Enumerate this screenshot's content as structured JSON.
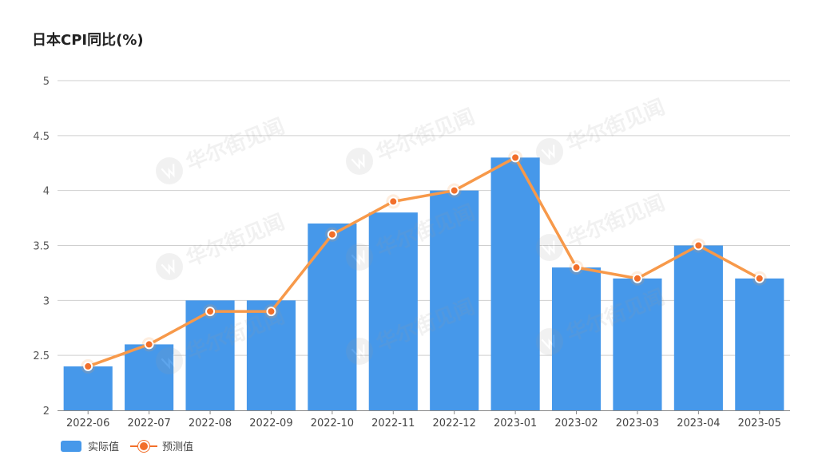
{
  "chart_data": {
    "type": "bar",
    "title": "日本CPI同比(%)",
    "categories": [
      "2022-06",
      "2022-07",
      "2022-08",
      "2022-09",
      "2022-10",
      "2022-11",
      "2022-12",
      "2023-01",
      "2023-02",
      "2023-03",
      "2023-04",
      "2023-05"
    ],
    "series": [
      {
        "name": "实际值",
        "type": "bar",
        "color": "#4698ea",
        "values": [
          2.4,
          2.6,
          3.0,
          3.0,
          3.7,
          3.8,
          4.0,
          4.3,
          3.3,
          3.2,
          3.5,
          3.2
        ]
      },
      {
        "name": "预测值",
        "type": "line",
        "color": "#f7994a",
        "marker_color": "#f26f2a",
        "values": [
          2.4,
          2.6,
          2.9,
          2.9,
          3.6,
          3.9,
          4.0,
          4.3,
          3.3,
          3.2,
          3.5,
          3.2
        ]
      }
    ],
    "ylim": [
      2,
      5
    ],
    "yticks": [
      "2",
      "2.5",
      "3",
      "3.5",
      "4",
      "4.5",
      "5"
    ],
    "grid": true,
    "legend": "bottom-left"
  },
  "watermark": {
    "text": "华尔街见闻",
    "icon": "wallstreetcn-logo-icon"
  }
}
